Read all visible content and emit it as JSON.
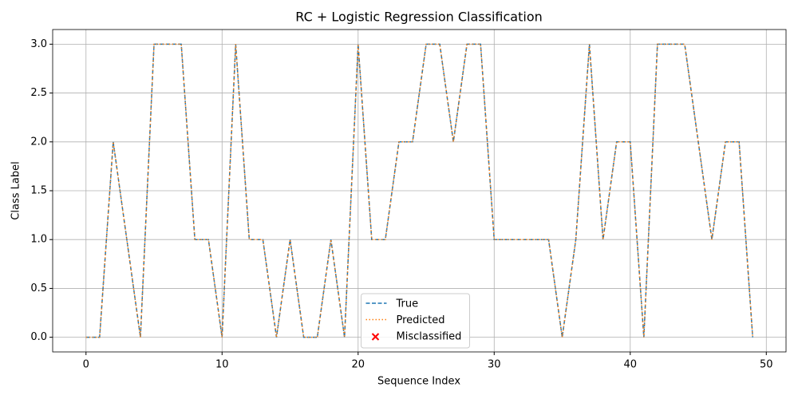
{
  "chart_data": {
    "type": "line",
    "title": "RC + Logistic Regression Classification",
    "xlabel": "Sequence Index",
    "ylabel": "Class Label",
    "x": [
      0,
      1,
      2,
      3,
      4,
      5,
      6,
      7,
      8,
      9,
      10,
      11,
      12,
      13,
      14,
      15,
      16,
      17,
      18,
      19,
      20,
      21,
      22,
      23,
      24,
      25,
      26,
      27,
      28,
      29,
      30,
      31,
      32,
      33,
      34,
      35,
      36,
      37,
      38,
      39,
      40,
      41,
      42,
      43,
      44,
      45,
      46,
      47,
      48,
      49
    ],
    "series": [
      {
        "name": "True",
        "color": "#1f77b4",
        "style": "dashed",
        "values": [
          0,
          0,
          2,
          1,
          0,
          3,
          3,
          3,
          1,
          1,
          0,
          3,
          1,
          1,
          0,
          1,
          0,
          0,
          1,
          0,
          3,
          1,
          1,
          2,
          2,
          3,
          3,
          2,
          3,
          3,
          1,
          1,
          1,
          1,
          1,
          0,
          1,
          3,
          1,
          2,
          2,
          0,
          3,
          3,
          3,
          2,
          1,
          2,
          2,
          0
        ]
      },
      {
        "name": "Predicted",
        "color": "#ff7f0e",
        "style": "dotted",
        "values": [
          0,
          0,
          2,
          1,
          0,
          3,
          3,
          3,
          1,
          1,
          0,
          3,
          1,
          1,
          0,
          1,
          0,
          0,
          1,
          0,
          3,
          1,
          1,
          2,
          2,
          3,
          3,
          2,
          3,
          3,
          1,
          1,
          1,
          1,
          1,
          0,
          1,
          3,
          1,
          2,
          2,
          0,
          3,
          3,
          3,
          2,
          1,
          2,
          2,
          0
        ]
      },
      {
        "name": "Misclassified",
        "color": "#ff0000",
        "style": "scatter",
        "x": [],
        "values": []
      }
    ],
    "xlim": [
      -2.45,
      51.45
    ],
    "ylim": [
      -0.15,
      3.15
    ],
    "xticks": [
      0,
      10,
      20,
      30,
      40,
      50
    ],
    "yticks": [
      {
        "value": 0,
        "label": "0.0"
      },
      {
        "value": 0.5,
        "label": "0.5"
      },
      {
        "value": 1,
        "label": "1.0"
      },
      {
        "value": 1.5,
        "label": "1.5"
      },
      {
        "value": 2,
        "label": "2.0"
      },
      {
        "value": 2.5,
        "label": "2.5"
      },
      {
        "value": 3,
        "label": "3.0"
      }
    ],
    "grid": true,
    "legend": "lower center"
  }
}
